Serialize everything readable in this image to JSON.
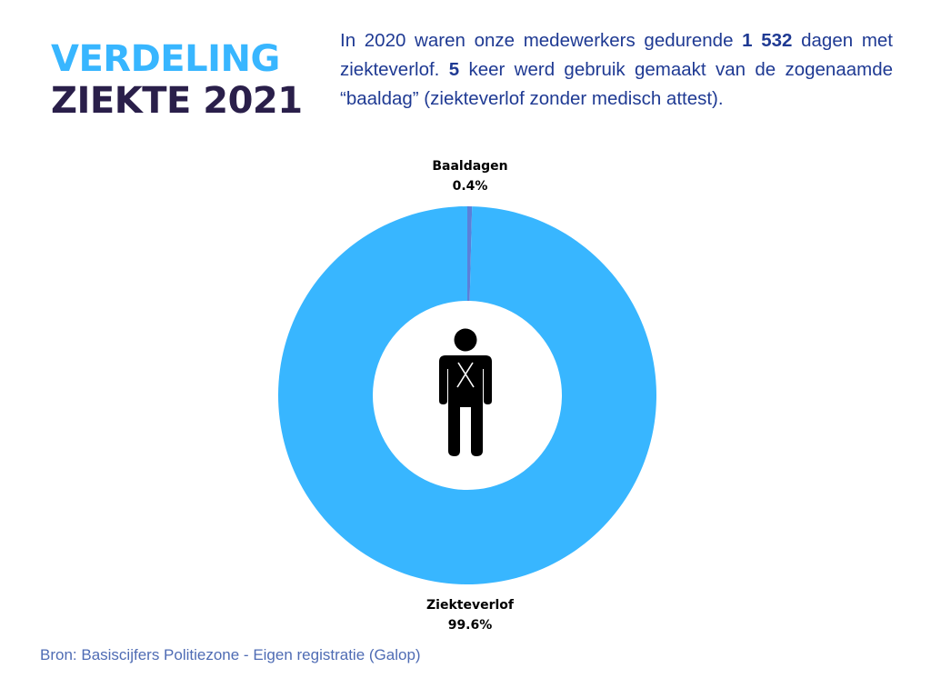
{
  "title": {
    "line1": "VERDELING",
    "line2": "ZIEKTE 2021"
  },
  "intro": {
    "part1": "In 2020 waren onze medewerkers gedurende ",
    "days": "1 532",
    "part2": " dagen met ziekteverlof.  ",
    "count": "5",
    "part3": " keer werd gebruik gemaakt van de zogenaamde “baaldag” (ziekteverlof zonder medisch attest)."
  },
  "chart_data": {
    "type": "pie",
    "donut": true,
    "categories": [
      "Ziekteverlof",
      "Baaldagen"
    ],
    "values": [
      99.6,
      0.4
    ],
    "value_labels": [
      "99.6%",
      "0.4%"
    ],
    "colors": [
      "#38b6ff",
      "#5b7fd9"
    ],
    "center_icon": "sick-person-icon"
  },
  "source": "Bron: Basiscijfers Politiezone - Eigen registratie (Galop)"
}
